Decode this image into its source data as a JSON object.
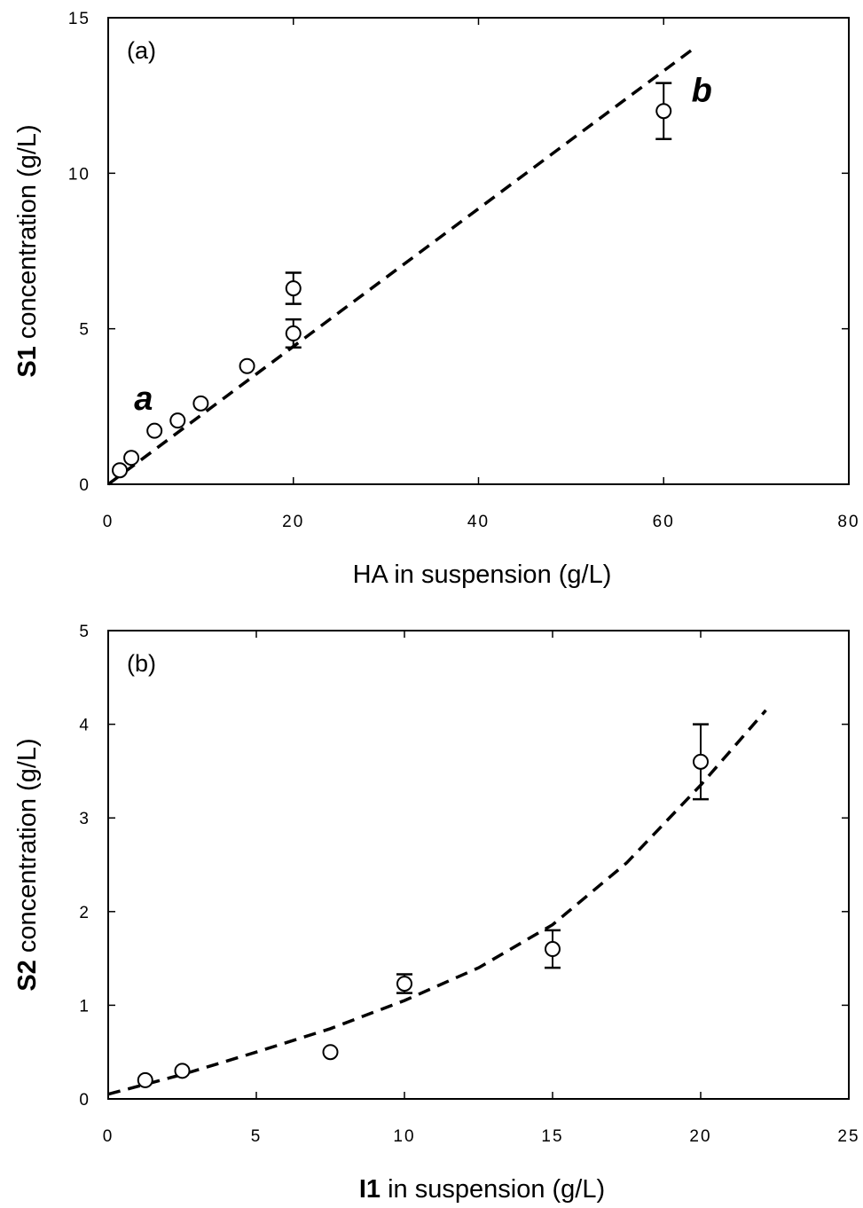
{
  "chart_data": [
    {
      "type": "scatter",
      "panel_label": "(a)",
      "xlabel": {
        "bold": "",
        "rest": "HA in suspension (g/L)"
      },
      "ylabel": {
        "bold": "S1",
        "rest": " concentration (g/L)"
      },
      "xlim": [
        0,
        80
      ],
      "ylim": [
        0,
        15
      ],
      "xticks": [
        "0",
        "20",
        "40",
        "60",
        "80"
      ],
      "yticks": [
        "0",
        "5",
        "10",
        "15"
      ],
      "grid": false,
      "points": [
        {
          "x": 1.25,
          "y": 0.45,
          "err": 0
        },
        {
          "x": 2.5,
          "y": 0.85,
          "err": 0
        },
        {
          "x": 5,
          "y": 1.72,
          "err": 0
        },
        {
          "x": 7.5,
          "y": 2.05,
          "err": 0
        },
        {
          "x": 10,
          "y": 2.6,
          "err": 0
        },
        {
          "x": 15,
          "y": 3.8,
          "err": 0
        },
        {
          "x": 20,
          "y": 4.85,
          "err": 0.45
        },
        {
          "x": 20,
          "y": 6.3,
          "err": 0.5
        },
        {
          "x": 60,
          "y": 12.0,
          "err": 0.9
        }
      ],
      "fit_line": {
        "style": "dashed",
        "x": [
          0,
          63.2
        ],
        "y": [
          0,
          14.0
        ]
      },
      "annotations": [
        {
          "text": "a",
          "x": 2.8,
          "y": 2.4
        },
        {
          "text": "b",
          "x": 63,
          "y": 12.3
        }
      ]
    },
    {
      "type": "scatter",
      "panel_label": "(b)",
      "xlabel": {
        "bold": "I1",
        "rest": " in suspension (g/L)"
      },
      "ylabel": {
        "bold": "S2",
        "rest": " concentration (g/L)"
      },
      "xlim": [
        0,
        25
      ],
      "ylim": [
        0,
        5
      ],
      "xticks": [
        "0",
        "5",
        "10",
        "15",
        "20",
        "25"
      ],
      "yticks": [
        "0",
        "1",
        "2",
        "3",
        "4",
        "5"
      ],
      "grid": false,
      "points": [
        {
          "x": 1.25,
          "y": 0.2,
          "err": 0
        },
        {
          "x": 2.5,
          "y": 0.3,
          "err": 0
        },
        {
          "x": 7.5,
          "y": 0.5,
          "err": 0
        },
        {
          "x": 10,
          "y": 1.23,
          "err": 0.1
        },
        {
          "x": 15,
          "y": 1.6,
          "err": 0.2
        },
        {
          "x": 20,
          "y": 3.6,
          "err": 0.4
        }
      ],
      "fit_line": {
        "style": "dashed",
        "x": [
          0,
          2.5,
          5,
          7.5,
          10,
          12.5,
          15,
          17.5,
          20,
          22.2
        ],
        "y": [
          0.05,
          0.26,
          0.5,
          0.75,
          1.05,
          1.4,
          1.86,
          2.52,
          3.35,
          4.15
        ]
      },
      "annotations": []
    }
  ]
}
